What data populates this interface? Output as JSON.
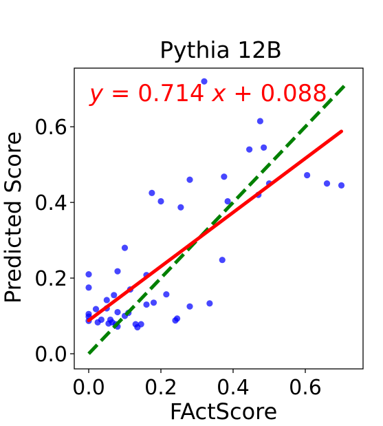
{
  "chart_data": {
    "type": "scatter",
    "title": "Pythia 12B",
    "xlabel": "FActScore",
    "ylabel": "Predicted Score",
    "xlim": [
      -0.04,
      0.76
    ],
    "ylim": [
      -0.04,
      0.755
    ],
    "xticks": [
      "0.0",
      "0.2",
      "0.4",
      "0.6"
    ],
    "yticks": [
      "0.0",
      "0.2",
      "0.4",
      "0.6"
    ],
    "grid": false,
    "annotation": {
      "prefix": "y",
      "eq": " = 0.714 ",
      "xvar": "x",
      "suffix": " + 0.088",
      "color": "#ff0000"
    },
    "fit_line": {
      "slope": 0.714,
      "intercept": 0.088,
      "x_range": [
        0.0,
        0.7
      ],
      "color": "#ff0000",
      "style": "solid"
    },
    "identity_line": {
      "x_range": [
        0.0,
        0.715
      ],
      "color": "#008000",
      "style": "dashed"
    },
    "points_color": "#0000ff",
    "points": [
      {
        "x": 0.0,
        "y": 0.21
      },
      {
        "x": 0.0,
        "y": 0.175
      },
      {
        "x": 0.0,
        "y": 0.105
      },
      {
        "x": 0.0,
        "y": 0.098
      },
      {
        "x": 0.0,
        "y": 0.087
      },
      {
        "x": 0.02,
        "y": 0.118
      },
      {
        "x": 0.025,
        "y": 0.083
      },
      {
        "x": 0.035,
        "y": 0.09
      },
      {
        "x": 0.05,
        "y": 0.142
      },
      {
        "x": 0.05,
        "y": 0.12
      },
      {
        "x": 0.055,
        "y": 0.08
      },
      {
        "x": 0.06,
        "y": 0.09
      },
      {
        "x": 0.065,
        "y": 0.083
      },
      {
        "x": 0.07,
        "y": 0.155
      },
      {
        "x": 0.075,
        "y": 0.078
      },
      {
        "x": 0.08,
        "y": 0.072
      },
      {
        "x": 0.08,
        "y": 0.218
      },
      {
        "x": 0.08,
        "y": 0.11
      },
      {
        "x": 0.1,
        "y": 0.28
      },
      {
        "x": 0.1,
        "y": 0.1
      },
      {
        "x": 0.11,
        "y": 0.108
      },
      {
        "x": 0.115,
        "y": 0.17
      },
      {
        "x": 0.13,
        "y": 0.078
      },
      {
        "x": 0.135,
        "y": 0.07
      },
      {
        "x": 0.145,
        "y": 0.078
      },
      {
        "x": 0.16,
        "y": 0.208
      },
      {
        "x": 0.16,
        "y": 0.13
      },
      {
        "x": 0.175,
        "y": 0.425
      },
      {
        "x": 0.18,
        "y": 0.135
      },
      {
        "x": 0.2,
        "y": 0.403
      },
      {
        "x": 0.215,
        "y": 0.157
      },
      {
        "x": 0.24,
        "y": 0.088
      },
      {
        "x": 0.245,
        "y": 0.093
      },
      {
        "x": 0.255,
        "y": 0.387
      },
      {
        "x": 0.28,
        "y": 0.46
      },
      {
        "x": 0.28,
        "y": 0.125
      },
      {
        "x": 0.32,
        "y": 0.72
      },
      {
        "x": 0.335,
        "y": 0.133
      },
      {
        "x": 0.37,
        "y": 0.248
      },
      {
        "x": 0.375,
        "y": 0.468
      },
      {
        "x": 0.385,
        "y": 0.403
      },
      {
        "x": 0.445,
        "y": 0.54
      },
      {
        "x": 0.47,
        "y": 0.42
      },
      {
        "x": 0.475,
        "y": 0.615
      },
      {
        "x": 0.485,
        "y": 0.545
      },
      {
        "x": 0.5,
        "y": 0.45
      },
      {
        "x": 0.605,
        "y": 0.472
      },
      {
        "x": 0.66,
        "y": 0.45
      },
      {
        "x": 0.7,
        "y": 0.445
      }
    ]
  }
}
